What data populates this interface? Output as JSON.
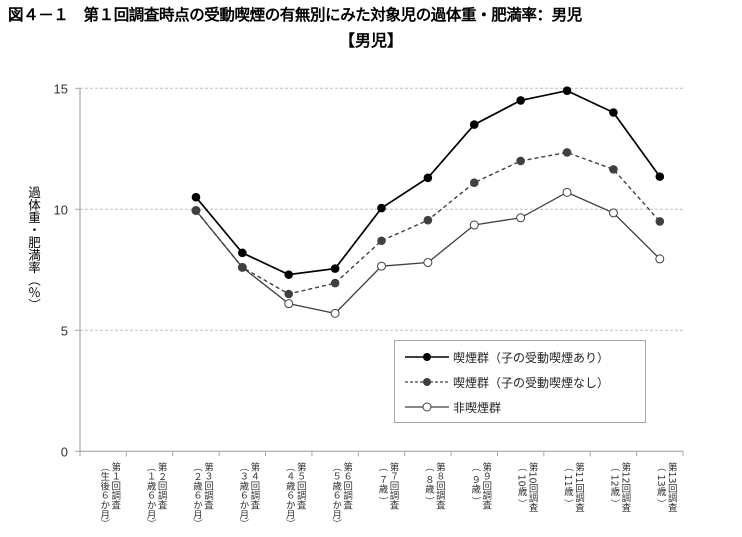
{
  "header": {
    "title": "図４－１　第１回調査時点の受動喫煙の有無別にみた対象児の過体重・肥満率：男児",
    "subtitle": "【男児】"
  },
  "axes": {
    "ylabel": "過体重・肥満率（％）",
    "yticks": [
      "0",
      "5",
      "10",
      "15"
    ]
  },
  "legend": {
    "items": [
      {
        "label": "喫煙群（子の受動喫煙あり）"
      },
      {
        "label": "喫煙群（子の受動喫煙なし）"
      },
      {
        "label": "非喫煙群"
      }
    ]
  },
  "chart_data": {
    "type": "line",
    "title": "図４－１　第１回調査時点の受動喫煙の有無別にみた対象児の過体重・肥満率：男児【男児】",
    "xlabel": "",
    "ylabel": "過体重・肥満率（％）",
    "ylim": [
      0,
      15
    ],
    "yticks": [
      0,
      5,
      10,
      15
    ],
    "grid": true,
    "legend_position": "inside-lower-right",
    "categories": [
      "第１回調査（生後６か月）",
      "第２回調査（１歳６か月）",
      "第３回調査（２歳６か月）",
      "第４回調査（３歳６か月）",
      "第５回調査（４歳６か月）",
      "第６回調査（５歳６か月）",
      "第７回調査（ ７歳 ）",
      "第８回調査（ ８歳 ）",
      "第９回調査（ ９歳 ）",
      "第10回調査（ 10歳 ）",
      "第11回調査（ 11歳 ）",
      "第12回調査（ 12歳 ）",
      "第13回調査（ 13歳 ）"
    ],
    "category_lines": [
      [
        "第１回調査",
        "（生後６か月）"
      ],
      [
        "第２回調査",
        "（１歳６か月）"
      ],
      [
        "第３回調査",
        "（２歳６か月）"
      ],
      [
        "第４回調査",
        "（３歳６か月）"
      ],
      [
        "第５回調査",
        "（４歳６か月）"
      ],
      [
        "第６回調査",
        "（５歳６か月）"
      ],
      [
        "第７回調査",
        "（ ７歳 ）"
      ],
      [
        "第８回調査",
        "（ ８歳 ）"
      ],
      [
        "第９回調査",
        "（ ９歳 ）"
      ],
      [
        "第10回調査",
        "（ 10歳 ）"
      ],
      [
        "第11回調査",
        "（ 11歳 ）"
      ],
      [
        "第12回調査",
        "（ 12歳 ）"
      ],
      [
        "第13回調査",
        "（ 13歳 ）"
      ]
    ],
    "series": [
      {
        "name": "喫煙群（子の受動喫煙あり）",
        "style": "solid",
        "marker": "filled",
        "color": "#000000",
        "values": [
          null,
          null,
          10.5,
          8.2,
          7.3,
          7.55,
          10.05,
          11.3,
          13.5,
          14.5,
          14.9,
          14.0,
          11.35
        ]
      },
      {
        "name": "喫煙群（子の受動喫煙なし）",
        "style": "dashed",
        "marker": "filled",
        "color": "#404040",
        "values": [
          null,
          null,
          9.95,
          7.6,
          6.5,
          6.95,
          8.7,
          9.55,
          11.1,
          12.0,
          12.35,
          11.65,
          9.5
        ]
      },
      {
        "name": "非喫煙群",
        "style": "solid",
        "marker": "hollow",
        "color": "#404040",
        "values": [
          null,
          null,
          9.95,
          7.6,
          6.1,
          5.7,
          7.65,
          7.8,
          9.35,
          9.65,
          10.7,
          9.85,
          7.95
        ]
      }
    ]
  }
}
